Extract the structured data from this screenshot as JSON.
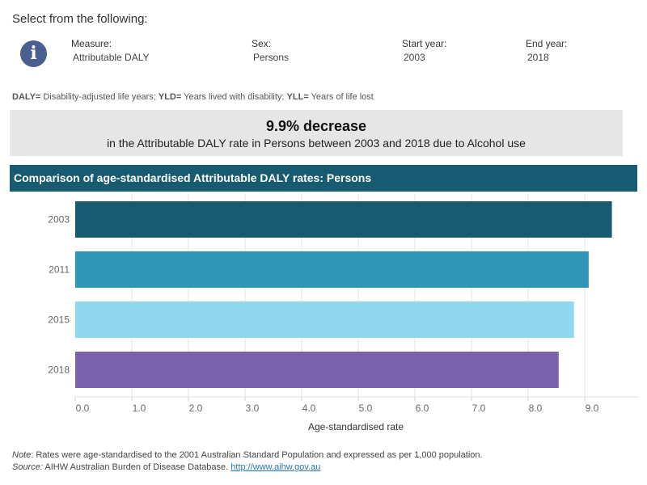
{
  "selector": {
    "title": "Select from the following:",
    "info_icon": "info-icon",
    "measure": {
      "label": "Measure:",
      "value": "Attributable DALY"
    },
    "sex": {
      "label": "Sex:",
      "value": "Persons"
    },
    "start_year": {
      "label": "Start year:",
      "value": "2003"
    },
    "end_year": {
      "label": "End year:",
      "value": "2018"
    }
  },
  "abbreviations": [
    {
      "term": "DALY=",
      "text": " Disability-adjusted life years; "
    },
    {
      "term": "YLD=",
      "text": " Years lived with disability; "
    },
    {
      "term": "YLL=",
      "text": " Years of life lost"
    }
  ],
  "summary": {
    "headline": "9.9% decrease",
    "detail": "in the Attributable DALY rate in Persons between 2003 and 2018 due to Alcohol use"
  },
  "chart_header": "Comparison of age-standardised Attributable DALY rates: Persons",
  "chart_data": {
    "type": "bar",
    "orientation": "horizontal",
    "categories": [
      "2003",
      "2011",
      "2015",
      "2018"
    ],
    "values": [
      9.48,
      9.07,
      8.81,
      8.54
    ],
    "colors": [
      "#185a70",
      "#2e97b8",
      "#8fd8f0",
      "#7a62ae"
    ],
    "xlabel": "Age-standardised rate",
    "xlim": [
      0,
      9.9
    ],
    "xticks": [
      "0.0",
      "1.0",
      "2.0",
      "3.0",
      "4.0",
      "5.0",
      "6.0",
      "7.0",
      "8.0",
      "9.0"
    ],
    "grid": true
  },
  "footer": {
    "note_label": "Note",
    "note": ": Rates were age-standardised to the 2001 Australian Standard Population and expressed as per 1,000 population.",
    "source_label": "Source:",
    "source": " AIHW Australian Burden of Disease Database. ",
    "link": "http://www.aihw.gov.au"
  }
}
